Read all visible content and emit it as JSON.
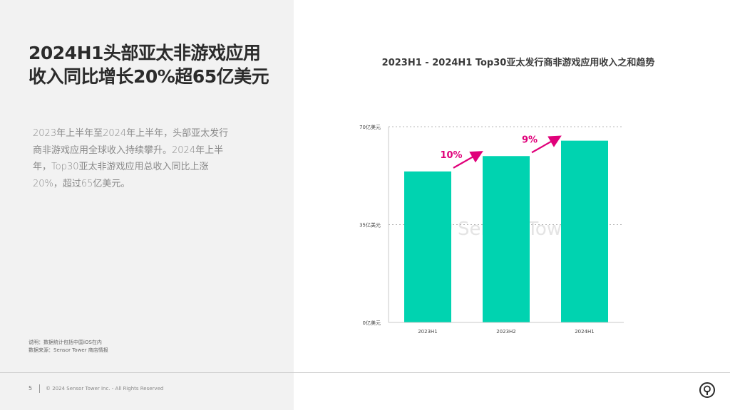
{
  "headline": {
    "line1": "2024H1头部亚太非游戏应用",
    "line2": "收入同比增长20%超65亿美元"
  },
  "body": {
    "lines": [
      "2023年上半年至2024年上半年，头部亚太发行",
      "商非游戏应用全球收入持续攀升。2024年上半",
      "年，Top30亚太非游戏应用总收入同比上涨",
      "20%，超过65亿美元。"
    ]
  },
  "notes": {
    "note": "说明：数据统计包括中国iOS在内",
    "source": "数据来源：Sensor Tower 商店情报"
  },
  "footer": {
    "page_number": "5",
    "copyright": "© 2024 Sensor Tower Inc. - All Rights Reserved"
  },
  "watermark": "Sensor Tower",
  "chart_data": {
    "type": "bar",
    "title": "2023H1 - 2024H1 Top30亚太发行商非游戏应用收入之和趋势",
    "categories": [
      "2023H1",
      "2023H2",
      "2024H1"
    ],
    "values": [
      54,
      59.5,
      65
    ],
    "ylim": [
      0,
      70
    ],
    "yticks": [
      {
        "value": 0,
        "label": "0亿美元"
      },
      {
        "value": 35,
        "label": "35亿美元"
      },
      {
        "value": 70,
        "label": "70亿美元"
      }
    ],
    "growth_annotations": [
      "10%",
      "9%"
    ],
    "grid": "dashed horizontal",
    "bar_color": "#00d3b0",
    "accent_color": "#e0007a"
  }
}
